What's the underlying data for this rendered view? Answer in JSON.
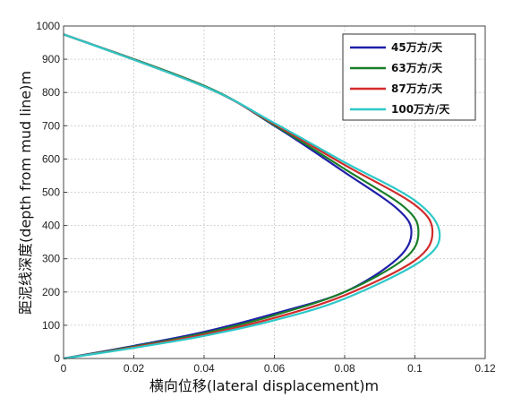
{
  "chart_data": {
    "type": "line",
    "xlabel": "横向位移(lateral displacement)m",
    "ylabel": "距泥线深度(depth from mud line)m",
    "xlim": [
      0,
      0.12
    ],
    "ylim": [
      0,
      1000
    ],
    "xticks": [
      "0",
      "0.02",
      "0.04",
      "0.06",
      "0.08",
      "0.1",
      "0.12"
    ],
    "yticks": [
      "0",
      "100",
      "200",
      "300",
      "400",
      "500",
      "600",
      "700",
      "800",
      "900",
      "1000"
    ],
    "grid": true,
    "legend_position": "top-right",
    "series": [
      {
        "name": "45万方/天",
        "color": "#1f1fa8",
        "points": [
          [
            0,
            975
          ],
          [
            0.04,
            820
          ],
          [
            0.06,
            700
          ],
          [
            0.08,
            560
          ],
          [
            0.095,
            450
          ],
          [
            0.099,
            380
          ],
          [
            0.095,
            300
          ],
          [
            0.08,
            200
          ],
          [
            0.06,
            135
          ],
          [
            0.04,
            80
          ],
          [
            0.02,
            38
          ],
          [
            0,
            0
          ]
        ]
      },
      {
        "name": "63万方/天",
        "color": "#1a7f2a",
        "points": [
          [
            0,
            975
          ],
          [
            0.04,
            820
          ],
          [
            0.06,
            702
          ],
          [
            0.08,
            570
          ],
          [
            0.097,
            455
          ],
          [
            0.101,
            380
          ],
          [
            0.097,
            300
          ],
          [
            0.08,
            200
          ],
          [
            0.06,
            130
          ],
          [
            0.04,
            76
          ],
          [
            0.02,
            36
          ],
          [
            0,
            0
          ]
        ]
      },
      {
        "name": "87万方/天",
        "color": "#d22b2b",
        "points": [
          [
            0,
            975
          ],
          [
            0.04,
            818
          ],
          [
            0.06,
            705
          ],
          [
            0.08,
            582
          ],
          [
            0.1,
            462
          ],
          [
            0.105,
            380
          ],
          [
            0.1,
            295
          ],
          [
            0.08,
            190
          ],
          [
            0.06,
            122
          ],
          [
            0.04,
            72
          ],
          [
            0.02,
            34
          ],
          [
            0,
            0
          ]
        ]
      },
      {
        "name": "100万方/天",
        "color": "#2cc8c8",
        "points": [
          [
            0,
            975
          ],
          [
            0.04,
            818
          ],
          [
            0.06,
            708
          ],
          [
            0.08,
            590
          ],
          [
            0.1,
            475
          ],
          [
            0.107,
            380
          ],
          [
            0.102,
            295
          ],
          [
            0.08,
            180
          ],
          [
            0.06,
            115
          ],
          [
            0.04,
            68
          ],
          [
            0.02,
            32
          ],
          [
            0,
            0
          ]
        ]
      }
    ]
  }
}
